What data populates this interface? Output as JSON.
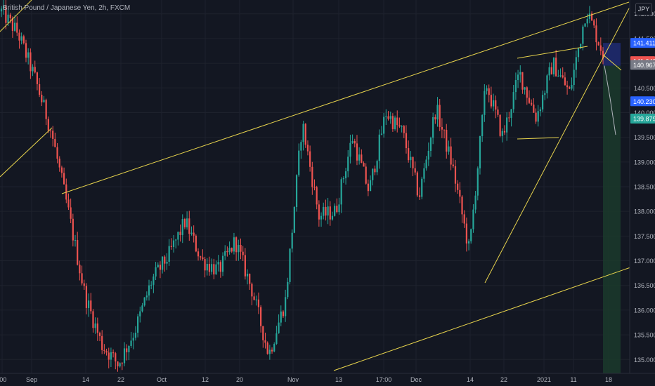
{
  "header": {
    "title": "British Pound / Japanese Yen, 2h, FXCM",
    "currency": "JPY"
  },
  "colors": {
    "background": "#131722",
    "up": "#26a69a",
    "down": "#ef5350",
    "trendline": "#e8d44d",
    "grid": "#1e222d"
  },
  "chart_data": {
    "type": "candlestick",
    "symbol": "GBPJPY",
    "timeframe": "2h",
    "y_range": [
      134.72,
      142.28
    ],
    "y_ticks": [
      135.0,
      135.5,
      136.0,
      136.5,
      137.0,
      137.5,
      138.0,
      138.5,
      139.0,
      139.5,
      140.0,
      140.5,
      141.0,
      141.5,
      142.0
    ],
    "y_tick_labels": [
      "135.000",
      "135.500",
      "136.000",
      "136.500",
      "137.000",
      "137.500",
      "138.000",
      "138.500",
      "139.000",
      "139.500",
      "140.000",
      "140.500",
      "141.000",
      "141.500",
      "142.000"
    ],
    "x_labels": [
      ":00",
      "Sep",
      "14",
      "22",
      "Oct",
      "12",
      "20",
      "Nov",
      "13",
      "17:00",
      "Dec",
      "14",
      "22",
      "2021",
      "11",
      "18"
    ],
    "price_badges": [
      {
        "value": 141.411,
        "label": "141.411",
        "color": "#2962ff"
      },
      {
        "value": 141.042,
        "label": "141.042",
        "color": "#ef5350"
      },
      {
        "value": 140.967,
        "label": "140.967",
        "color": "#787b86"
      },
      {
        "value": 140.23,
        "label": "140.230",
        "color": "#2962ff"
      },
      {
        "value": 139.88,
        "label": "139.880",
        "color": "#787b86"
      },
      {
        "value": 139.879,
        "label": "139.879",
        "color": "#26a69a"
      }
    ],
    "price_path": [
      142.05,
      141.6,
      140.7,
      139.6,
      138.0,
      136.3,
      135.3,
      134.9,
      135.6,
      136.6,
      137.1,
      137.8,
      137.0,
      136.8,
      137.4,
      136.4,
      135.1,
      136.2,
      139.8,
      137.9,
      138.0,
      139.5,
      138.4,
      140.0,
      139.6,
      138.3,
      140.1,
      138.9,
      137.2,
      140.6,
      139.5,
      140.8,
      139.9,
      141.0,
      140.4,
      142.1,
      141.2
    ],
    "projection_path": [
      140.95,
      140.3,
      139.55
    ]
  }
}
